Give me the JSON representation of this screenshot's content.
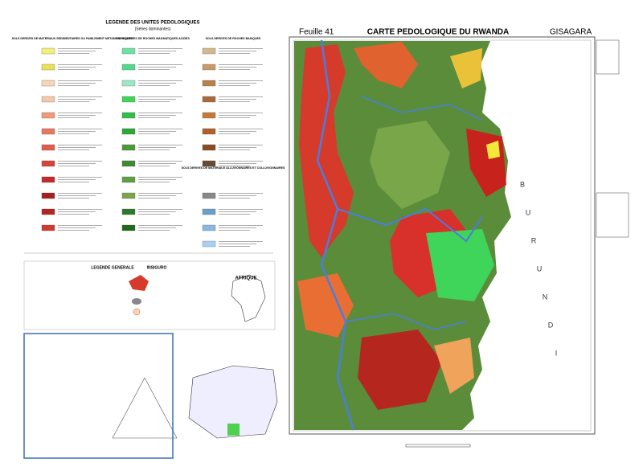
{
  "header": {
    "sheet": "Feuille   41",
    "title": "CARTE PEDOLOGIQUE DU RWANDA",
    "region": "GISAGARA"
  },
  "legend": {
    "title": "LEGENDE DES UNITES PEDOLOGIQUES",
    "subtitle": "(Séries dominantes)",
    "columns": [
      "SOLS DERIVES DE MATERIAUX SEDIMENTAIRES OU FAIBLEMENT METAMORPHIQUES",
      "SOLS DERIVES DE ROCHES MAGMATIQUES ACIDES",
      "SOLS DERIVES DE ROCHES BASIQUES"
    ],
    "alluvial": "SOLS DERIVES DE MATERIAUX ALLUVIONNAIRES ET COLLUVIONNAIRES"
  },
  "general_legend": {
    "title": "LEGENDE GENERALE",
    "title_rw": "INSIGURO",
    "inset": "AFRIQUE"
  },
  "map": {
    "country_letters": [
      "B",
      "U",
      "R",
      "U",
      "N",
      "D",
      "I"
    ]
  }
}
